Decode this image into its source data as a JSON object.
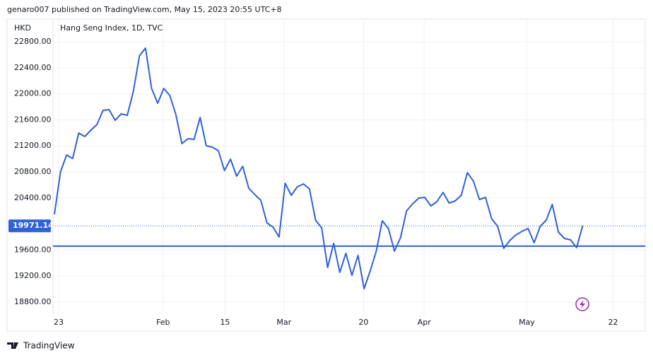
{
  "header": "genaro007 published on TradingView.com, May 15, 2023 20:55 UTC+8",
  "footer": "TradingView",
  "chart_data": {
    "type": "line",
    "title": "Hang Seng Index, 1D, TVC",
    "currency": "HKD",
    "color": "#2f62d6",
    "grid": true,
    "values": [
      20148,
      20800,
      21061,
      21006,
      21398,
      21343,
      21441,
      21528,
      21746,
      21756,
      21593,
      21691,
      21670,
      22039,
      22583,
      22702,
      22083,
      21854,
      22083,
      21974,
      21680,
      21235,
      21311,
      21300,
      21637,
      21202,
      21180,
      21126,
      20822,
      20996,
      20735,
      20887,
      20550,
      20452,
      20365,
      20017,
      19952,
      19800,
      20626,
      20441,
      20572,
      20615,
      20539,
      20061,
      19941,
      19332,
      19702,
      19256,
      19550,
      19213,
      19517,
      19006,
      19278,
      19582,
      20050,
      19930,
      19582,
      19789,
      20202,
      20311,
      20398,
      20409,
      20278,
      20343,
      20485,
      20322,
      20354,
      20441,
      20789,
      20659,
      20376,
      20409,
      20082,
      19963,
      19626,
      19746,
      19832,
      19887,
      19930,
      19713,
      19963,
      20061,
      20300,
      19876,
      19778,
      19756,
      19637,
      19971.14
    ],
    "last_price_label": "19971.14",
    "horizontal_line": 19660,
    "xlim": [
      -7.8,
      97.3
    ],
    "xticks": [
      {
        "value": 0.7,
        "label": "23"
      },
      {
        "value": 17.9,
        "label": "Feb"
      },
      {
        "value": 28.1,
        "label": "15"
      },
      {
        "value": 37.8,
        "label": "Mar"
      },
      {
        "value": 50.9,
        "label": "20"
      },
      {
        "value": 60.9,
        "label": "Apr"
      },
      {
        "value": 77.8,
        "label": "May"
      },
      {
        "value": 92,
        "label": "22"
      }
    ],
    "ylim": [
      18604,
      23148
    ],
    "yticks": [
      {
        "value": 22800,
        "label": "22800.00"
      },
      {
        "value": 22400,
        "label": "22400.00"
      },
      {
        "value": 22000,
        "label": "22000.00"
      },
      {
        "value": 21600,
        "label": "21600.00"
      },
      {
        "value": 21200,
        "label": "21200.00"
      },
      {
        "value": 20800,
        "label": "20800.00"
      },
      {
        "value": 20400,
        "label": "20400.00"
      },
      {
        "value": 19600,
        "label": "19600.00"
      },
      {
        "value": 19200,
        "label": "19200.00"
      },
      {
        "value": 18800,
        "label": "18800.00"
      }
    ]
  }
}
